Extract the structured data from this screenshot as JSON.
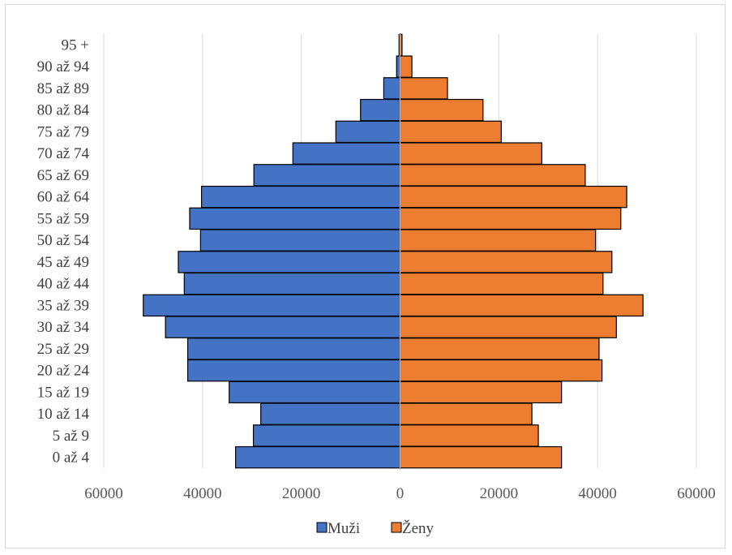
{
  "chart_data": {
    "type": "bar",
    "orientation": "horizontal",
    "title": "",
    "xlabel": "",
    "ylabel": "",
    "xlim": [
      -60000,
      60000
    ],
    "x_ticks": [
      {
        "value": -60000,
        "label": "60000"
      },
      {
        "value": -40000,
        "label": "40000"
      },
      {
        "value": -20000,
        "label": "20000"
      },
      {
        "value": 0,
        "label": "0"
      },
      {
        "value": 20000,
        "label": "20000"
      },
      {
        "value": 40000,
        "label": "40000"
      },
      {
        "value": 60000,
        "label": "60000"
      }
    ],
    "grid": "vertical",
    "legend_position": "bottom",
    "categories": [
      "0 až 4",
      "5 až 9",
      "10 až 14",
      "15 až 19",
      "20 až 24",
      "25 až 29",
      "30 až 34",
      "35 až 39",
      "40 až 44",
      "45 až 49",
      "50 až 54",
      "55 až 59",
      "60 až 64",
      "65 až 69",
      "70 až 74",
      "75 až 79",
      "80 až 84",
      "85 až 89",
      "90 až 94",
      "95 +"
    ],
    "series": [
      {
        "name": "Muži",
        "color": "#4472c4",
        "values": [
          33300,
          29700,
          28200,
          34600,
          43000,
          43000,
          47500,
          52000,
          43700,
          44900,
          40400,
          42600,
          40200,
          29600,
          21700,
          13000,
          8000,
          3300,
          700,
          200
        ]
      },
      {
        "name": "Ženy",
        "color": "#ed7d31",
        "values": [
          32700,
          28000,
          26700,
          32700,
          40900,
          40300,
          43800,
          49200,
          41100,
          42900,
          39600,
          44700,
          45900,
          37500,
          28700,
          20500,
          16800,
          9600,
          2400,
          400
        ]
      }
    ]
  }
}
